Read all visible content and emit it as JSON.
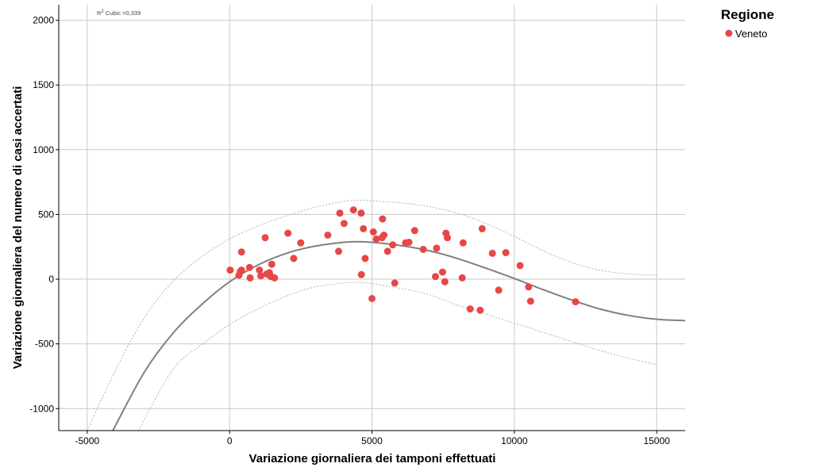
{
  "chart_data": {
    "type": "scatter",
    "xlabel": "Variazione giornaliera dei tamponi effettuati",
    "ylabel": "Variazione giornaliera del numero di casi accertati",
    "xlim": [
      -6000,
      16000
    ],
    "ylim": [
      -1170,
      2120
    ],
    "x_ticks": [
      -5000,
      0,
      5000,
      10000,
      15000
    ],
    "y_ticks": [
      -1000,
      -500,
      0,
      500,
      1000,
      1500,
      2000
    ],
    "grid": true,
    "legend": {
      "title": "Regione",
      "position": "top-right",
      "entries": [
        {
          "label": "Veneto",
          "color": "#e64747"
        }
      ]
    },
    "annotation": {
      "sup": "2",
      "pre": "R",
      "text": " Cubic =0,339"
    },
    "fit_line": {
      "type": "cubic",
      "color": "#808080",
      "points": [
        [
          -4100,
          -1170
        ],
        [
          -3000,
          -720
        ],
        [
          -2000,
          -420
        ],
        [
          -1000,
          -200
        ],
        [
          0,
          -20
        ],
        [
          1000,
          110
        ],
        [
          2000,
          200
        ],
        [
          3000,
          255
        ],
        [
          4000,
          285
        ],
        [
          4500,
          290
        ],
        [
          5000,
          285
        ],
        [
          6000,
          260
        ],
        [
          7000,
          220
        ],
        [
          8000,
          160
        ],
        [
          9000,
          85
        ],
        [
          10000,
          5
        ],
        [
          11000,
          -80
        ],
        [
          12000,
          -160
        ],
        [
          13000,
          -230
        ],
        [
          14000,
          -280
        ],
        [
          15000,
          -310
        ],
        [
          16000,
          -320
        ]
      ]
    },
    "ci_upper": {
      "color": "#a0a0a0",
      "points": [
        [
          -5000,
          -1170
        ],
        [
          -4000,
          -700
        ],
        [
          -3000,
          -300
        ],
        [
          -2000,
          -20
        ],
        [
          -1000,
          170
        ],
        [
          0,
          310
        ],
        [
          1000,
          410
        ],
        [
          2000,
          490
        ],
        [
          3000,
          555
        ],
        [
          4000,
          600
        ],
        [
          4500,
          610
        ],
        [
          5000,
          605
        ],
        [
          6000,
          590
        ],
        [
          7000,
          560
        ],
        [
          8000,
          510
        ],
        [
          9000,
          430
        ],
        [
          10000,
          330
        ],
        [
          11000,
          220
        ],
        [
          12000,
          130
        ],
        [
          13000,
          70
        ],
        [
          14000,
          40
        ],
        [
          15000,
          30
        ]
      ]
    },
    "ci_lower": {
      "color": "#a0a0a0",
      "points": [
        [
          -3200,
          -1170
        ],
        [
          -2000,
          -700
        ],
        [
          -1000,
          -510
        ],
        [
          0,
          -350
        ],
        [
          1000,
          -230
        ],
        [
          2000,
          -130
        ],
        [
          3000,
          -60
        ],
        [
          4000,
          -30
        ],
        [
          4500,
          -25
        ],
        [
          5000,
          -35
        ],
        [
          6000,
          -70
        ],
        [
          7000,
          -120
        ],
        [
          8000,
          -200
        ],
        [
          9000,
          -270
        ],
        [
          10000,
          -340
        ],
        [
          11000,
          -410
        ],
        [
          12000,
          -480
        ],
        [
          13000,
          -550
        ],
        [
          14000,
          -610
        ],
        [
          15000,
          -660
        ]
      ]
    },
    "series": [
      {
        "name": "Veneto",
        "color": "#e64747",
        "points": [
          [
            20,
            70
          ],
          [
            330,
            30
          ],
          [
            380,
            60
          ],
          [
            420,
            70
          ],
          [
            420,
            210
          ],
          [
            700,
            90
          ],
          [
            720,
            10
          ],
          [
            1050,
            70
          ],
          [
            1100,
            25
          ],
          [
            1250,
            320
          ],
          [
            1300,
            40
          ],
          [
            1400,
            50
          ],
          [
            1450,
            20
          ],
          [
            1480,
            115
          ],
          [
            1580,
            10
          ],
          [
            2050,
            355
          ],
          [
            2250,
            160
          ],
          [
            2500,
            280
          ],
          [
            3450,
            340
          ],
          [
            3830,
            215
          ],
          [
            3870,
            510
          ],
          [
            4020,
            430
          ],
          [
            4350,
            535
          ],
          [
            4620,
            510
          ],
          [
            4630,
            35
          ],
          [
            4700,
            390
          ],
          [
            4760,
            160
          ],
          [
            5000,
            -150
          ],
          [
            5050,
            365
          ],
          [
            5150,
            310
          ],
          [
            5350,
            320
          ],
          [
            5370,
            465
          ],
          [
            5420,
            340
          ],
          [
            5550,
            215
          ],
          [
            5730,
            265
          ],
          [
            5800,
            -30
          ],
          [
            6180,
            280
          ],
          [
            6300,
            285
          ],
          [
            6500,
            375
          ],
          [
            6800,
            230
          ],
          [
            7230,
            20
          ],
          [
            7270,
            240
          ],
          [
            7480,
            55
          ],
          [
            7560,
            -20
          ],
          [
            7600,
            355
          ],
          [
            7650,
            320
          ],
          [
            8170,
            10
          ],
          [
            8200,
            280
          ],
          [
            8450,
            -230
          ],
          [
            8800,
            -240
          ],
          [
            8870,
            390
          ],
          [
            9230,
            200
          ],
          [
            9450,
            -85
          ],
          [
            9700,
            205
          ],
          [
            10200,
            105
          ],
          [
            10500,
            -60
          ],
          [
            10570,
            -170
          ],
          [
            12150,
            -175
          ]
        ]
      }
    ]
  }
}
